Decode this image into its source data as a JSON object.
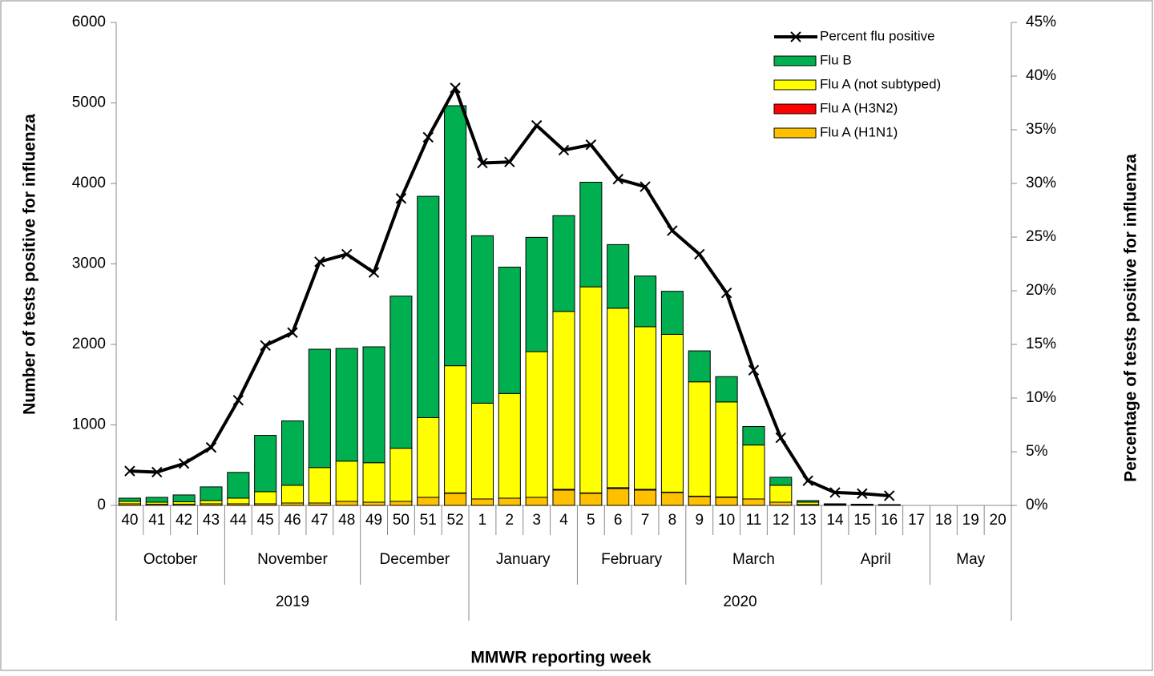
{
  "chart_data": {
    "type": "bar",
    "y_label": "Number of tests positive for influenza",
    "y2_label": "Percentage  of  tests  positive for influenza",
    "x_label": "MMWR reporting week",
    "categories": [
      "40",
      "41",
      "42",
      "43",
      "44",
      "45",
      "46",
      "47",
      "48",
      "49",
      "50",
      "51",
      "52",
      "1",
      "2",
      "3",
      "4",
      "5",
      "6",
      "7",
      "8",
      "9",
      "10",
      "11",
      "12",
      "13",
      "14",
      "15",
      "16",
      "17",
      "18",
      "19",
      "20"
    ],
    "months": [
      "October",
      "October",
      "October",
      "October",
      "November",
      "November",
      "November",
      "November",
      "November",
      "December",
      "December",
      "December",
      "December",
      "January",
      "January",
      "January",
      "January",
      "February",
      "February",
      "February",
      "February",
      "March",
      "March",
      "March",
      "March",
      "March",
      "April",
      "April",
      "April",
      "April",
      "May",
      "May",
      "May"
    ],
    "years": [
      "2019",
      "2019",
      "2019",
      "2019",
      "2019",
      "2019",
      "2019",
      "2019",
      "2019",
      "2019",
      "2019",
      "2019",
      "2019",
      "2020",
      "2020",
      "2020",
      "2020",
      "2020",
      "2020",
      "2020",
      "2020",
      "2020",
      "2020",
      "2020",
      "2020",
      "2020",
      "2020",
      "2020",
      "2020",
      "2020",
      "2020",
      "2020",
      "2020"
    ],
    "series": [
      {
        "name": "Flu A (H1N1)",
        "color": "#ffc000",
        "values": [
          20,
          15,
          15,
          20,
          20,
          20,
          30,
          30,
          50,
          40,
          50,
          100,
          150,
          80,
          90,
          100,
          190,
          150,
          210,
          190,
          160,
          110,
          100,
          80,
          40,
          10,
          5,
          5,
          3,
          0,
          0,
          0,
          0
        ]
      },
      {
        "name": "Flu A (H3N2)",
        "color": "#ff0000",
        "values": [
          0,
          0,
          0,
          0,
          0,
          0,
          0,
          0,
          0,
          0,
          0,
          0,
          5,
          0,
          0,
          0,
          10,
          5,
          10,
          10,
          5,
          5,
          5,
          0,
          0,
          0,
          0,
          0,
          0,
          0,
          0,
          0,
          0
        ]
      },
      {
        "name": "Flu A (not subtyped)",
        "color": "#ffff00",
        "values": [
          30,
          25,
          30,
          40,
          70,
          150,
          220,
          440,
          500,
          490,
          660,
          990,
          1580,
          1190,
          1300,
          1810,
          2210,
          2560,
          2230,
          2020,
          1960,
          1420,
          1180,
          670,
          210,
          30,
          10,
          5,
          4,
          0,
          0,
          0,
          0
        ]
      },
      {
        "name": "Flu B",
        "color": "#00b050",
        "values": [
          40,
          60,
          85,
          170,
          320,
          700,
          800,
          1470,
          1400,
          1440,
          1890,
          2750,
          3230,
          2080,
          1570,
          1420,
          1190,
          1300,
          790,
          630,
          535,
          385,
          315,
          230,
          100,
          20,
          5,
          5,
          3,
          0,
          0,
          0,
          0
        ]
      },
      {
        "name": "Percent flu positive",
        "type": "line",
        "axis": "y2",
        "color": "#000000",
        "marker": "x",
        "values": [
          3.2,
          3.1,
          3.9,
          5.4,
          9.8,
          14.9,
          16.1,
          22.7,
          23.4,
          21.7,
          28.6,
          34.3,
          38.9,
          31.9,
          32.0,
          35.4,
          33.1,
          33.6,
          30.4,
          29.7,
          25.6,
          23.4,
          19.8,
          12.6,
          6.3,
          2.3,
          1.2,
          1.1,
          0.9,
          null,
          null,
          null,
          null
        ]
      }
    ],
    "legend_order": "reverse",
    "legend": "top-right",
    "ylim": [
      0,
      6000
    ],
    "yticks": [
      0,
      1000,
      2000,
      3000,
      4000,
      5000,
      6000
    ],
    "y2lim": [
      0,
      45
    ],
    "y2ticks": [
      {
        "value": 0,
        "label": "0%"
      },
      {
        "value": 5,
        "label": "5%"
      },
      {
        "value": 10,
        "label": "10%"
      },
      {
        "value": 15,
        "label": "15%"
      },
      {
        "value": 20,
        "label": "20%"
      },
      {
        "value": 25,
        "label": "25%"
      },
      {
        "value": 30,
        "label": "30%"
      },
      {
        "value": 35,
        "label": "35%"
      },
      {
        "value": 40,
        "label": "40%"
      },
      {
        "value": 45,
        "label": "45%"
      }
    ]
  }
}
